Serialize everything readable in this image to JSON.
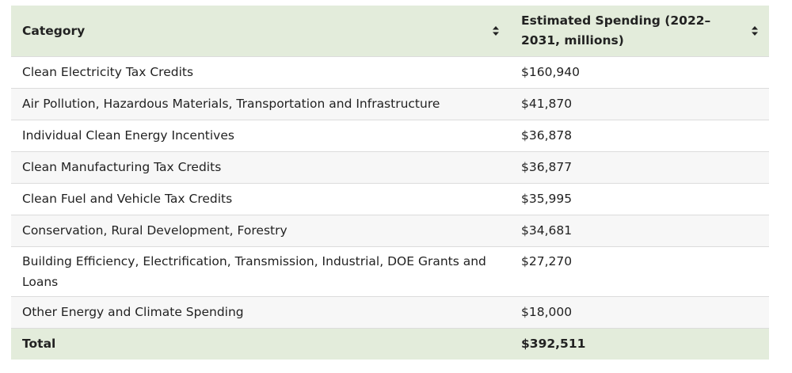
{
  "table": {
    "headers": [
      {
        "label": "Category"
      },
      {
        "label": "Estimated Spending (2022–2031, millions)"
      }
    ],
    "rows": [
      {
        "category": "Clean Electricity Tax Credits",
        "spending": "$160,940"
      },
      {
        "category": "Air Pollution, Hazardous Materials, Transportation and Infrastructure",
        "spending": "$41,870"
      },
      {
        "category": "Individual Clean Energy Incentives",
        "spending": "$36,878"
      },
      {
        "category": "Clean Manufacturing Tax Credits",
        "spending": "$36,877"
      },
      {
        "category": "Clean Fuel and Vehicle Tax Credits",
        "spending": "$35,995"
      },
      {
        "category": "Conservation, Rural Development, Forestry",
        "spending": "$34,681"
      },
      {
        "category": "Building Efficiency, Electrification, Transmission, Industrial, DOE Grants and Loans",
        "spending": "$27,270"
      },
      {
        "category": "Other Energy and Climate Spending",
        "spending": "$18,000"
      }
    ],
    "total": {
      "label": "Total",
      "value": "$392,511"
    }
  },
  "icons": {
    "sort": "sort-icon"
  },
  "colors": {
    "header_bg": "#e3ecdb",
    "row_alt": "#f7f7f7",
    "border": "#dcdcdc"
  }
}
